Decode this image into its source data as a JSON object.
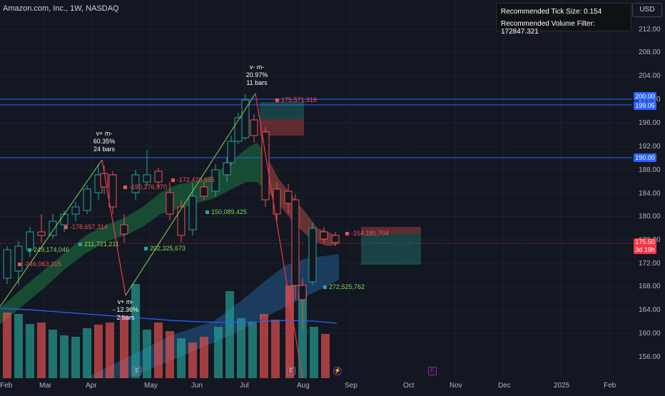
{
  "header": {
    "symbol": "Amazon.com, Inc., 1W, NASDAQ"
  },
  "info_box": {
    "tick_size": "Recommended Tick Size: 0.154",
    "volume_filter": "Recommended Volume Filter: 172847.321"
  },
  "currency_button": "USD",
  "price_axis": [
    "212.00",
    "208.00",
    "204.00",
    "200.00",
    "196.00",
    "192.00",
    "188.00",
    "184.00",
    "180.00",
    "176.00",
    "172.00",
    "168.00",
    "164.00",
    "160.00",
    "156.00"
  ],
  "price_tags": {
    "level_200": "200.00",
    "level_199": "199.05",
    "level_190": "190.00"
  },
  "last_price": {
    "price": "175.50",
    "countdown": "3d 19h"
  },
  "time_axis": [
    "Feb",
    "Mar",
    "Apr",
    "May",
    "Jun",
    "Jul",
    "Aug",
    "Sep",
    "Oct",
    "Nov",
    "Dec",
    "2025",
    "Feb"
  ],
  "annotations": {
    "a1": {
      "line1": "v+ m-",
      "line2": "60.35%",
      "line3": "24 bars"
    },
    "a2": {
      "line1": "v+ m-",
      "line2": "- 12.36%",
      "line3": "2 bars"
    },
    "a3": {
      "line1": "v- m-",
      "line2": "20.97%",
      "line3": "11 bars"
    }
  },
  "volume_labels": {
    "v1": "175,571,316",
    "v2": "-172,420,695",
    "v3": "-190,276,970",
    "v4": "150,089,425",
    "v5": "-178,657,314",
    "v6": "211,721,211",
    "v7": "249,174,046",
    "v8": "202,325,673",
    "v9": "-246,063,315",
    "v10": "-154,181,704",
    "v11": "272,525,762"
  },
  "events": {
    "e1": "E",
    "e2": "E",
    "e3": "E"
  },
  "colors": {
    "up": "#26a69a",
    "down": "#ef5350",
    "blue_line": "#2962ff",
    "background": "#131722"
  }
}
